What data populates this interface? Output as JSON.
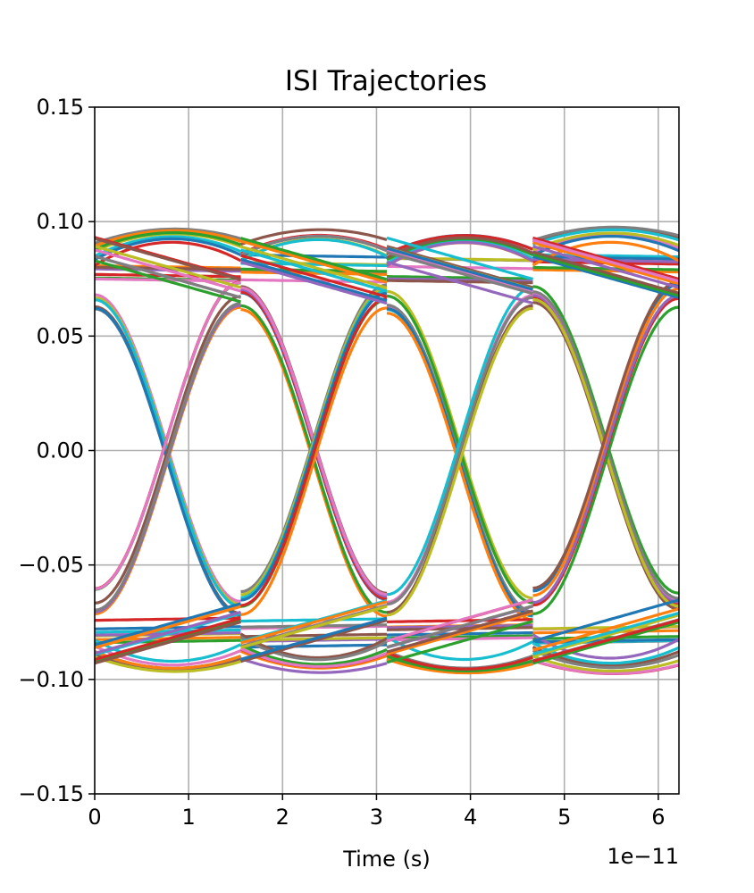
{
  "chart_data": {
    "type": "line",
    "title": "ISI Trajectories",
    "xlabel": "Time (s)",
    "ylabel": "",
    "x_offset_label": "1e−11",
    "xlim": [
      0,
      6.22
    ],
    "ylim": [
      -0.15,
      0.15
    ],
    "x_tick_values": [
      0,
      1,
      2,
      3,
      4,
      5,
      6
    ],
    "x_tick_labels": [
      "0",
      "1",
      "2",
      "3",
      "4",
      "5",
      "6"
    ],
    "y_tick_values": [
      -0.15,
      -0.1,
      -0.05,
      0.0,
      0.05,
      0.1,
      0.15
    ],
    "y_tick_labels": [
      "−0.15",
      "−0.10",
      "−0.05",
      "0.00",
      "0.05",
      "0.10",
      "0.15"
    ],
    "grid": true,
    "symbol_period": 1.555,
    "segment_start_times": [
      0,
      1.555,
      3.11,
      4.665
    ],
    "segment_families": [
      {
        "kind": "high-flat",
        "y_start": 0.08,
        "y_end": 0.079
      },
      {
        "kind": "high-bump",
        "y_start": 0.086,
        "y_peak": 0.094,
        "y_end": 0.088
      },
      {
        "kind": "high-to-low",
        "y_start": 0.066,
        "y_end": -0.068
      },
      {
        "kind": "low-to-high",
        "y_start": -0.066,
        "y_end": 0.068
      },
      {
        "kind": "low-flat",
        "y_start": -0.08,
        "y_end": -0.079
      },
      {
        "kind": "low-bump",
        "y_start": -0.086,
        "y_peak": -0.094,
        "y_end": -0.088
      },
      {
        "kind": "high-decline",
        "y_start": 0.088,
        "y_end": 0.07
      },
      {
        "kind": "low-rise",
        "y_start": -0.088,
        "y_end": -0.07
      }
    ],
    "colors": [
      "#1f77b4",
      "#ff7f0e",
      "#2ca02c",
      "#d62728",
      "#9467bd",
      "#8c564b",
      "#e377c2",
      "#7f7f7f",
      "#bcbd22",
      "#17becf"
    ]
  }
}
